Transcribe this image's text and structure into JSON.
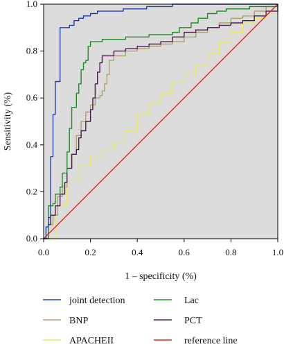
{
  "chart_data": {
    "type": "line",
    "title": "",
    "xlabel": "1 – specificity (%)",
    "ylabel": "Sensitivity (%)",
    "xlim": [
      0,
      1
    ],
    "ylim": [
      0,
      1
    ],
    "xticks": [
      "0.0",
      "0.2",
      "0.4",
      "0.6",
      "0.8",
      "1.0"
    ],
    "yticks": [
      "0.0",
      "0.2",
      "0.4",
      "0.6",
      "0.8",
      "1.0"
    ],
    "grid": false,
    "plot_background": "#dcdcdc",
    "legend_placement": "bottom",
    "series": [
      {
        "name": "joint detection",
        "color": "#1f3fb0",
        "x": [
          0,
          0.01,
          0.02,
          0.03,
          0.03,
          0.04,
          0.05,
          0.05,
          0.06,
          0.07,
          0.07,
          0.09,
          0.11,
          0.13,
          0.15,
          0.17,
          0.2,
          0.23,
          0.26,
          0.3,
          0.34,
          0.38,
          0.44,
          0.5,
          0.55,
          0.6,
          0.7,
          0.8,
          0.9,
          1.0
        ],
        "y": [
          0,
          0.05,
          0.09,
          0.1,
          0.35,
          0.53,
          0.55,
          0.67,
          0.67,
          0.82,
          0.9,
          0.9,
          0.91,
          0.93,
          0.94,
          0.95,
          0.96,
          0.97,
          0.97,
          0.97,
          0.98,
          0.98,
          0.99,
          0.99,
          1.0,
          1.0,
          1.0,
          1.0,
          1.0,
          1.0
        ]
      },
      {
        "name": "Lac",
        "color": "#1e8c2a",
        "x": [
          0,
          0.02,
          0.04,
          0.05,
          0.07,
          0.08,
          0.1,
          0.11,
          0.12,
          0.13,
          0.14,
          0.15,
          0.16,
          0.17,
          0.18,
          0.19,
          0.2,
          0.22,
          0.25,
          0.3,
          0.35,
          0.45,
          0.55,
          0.58,
          0.6,
          0.63,
          0.66,
          0.7,
          0.74,
          0.78,
          0.82,
          0.88,
          0.93,
          1.0
        ],
        "y": [
          0,
          0.14,
          0.15,
          0.19,
          0.22,
          0.28,
          0.37,
          0.47,
          0.56,
          0.56,
          0.62,
          0.66,
          0.72,
          0.75,
          0.76,
          0.82,
          0.84,
          0.84,
          0.85,
          0.85,
          0.86,
          0.87,
          0.88,
          0.9,
          0.9,
          0.92,
          0.94,
          0.96,
          0.97,
          0.98,
          0.98,
          0.99,
          0.99,
          1.0
        ]
      },
      {
        "name": "BNP",
        "color": "#b0a070",
        "x": [
          0,
          0.02,
          0.04,
          0.06,
          0.08,
          0.1,
          0.12,
          0.14,
          0.16,
          0.18,
          0.2,
          0.22,
          0.24,
          0.25,
          0.26,
          0.27,
          0.28,
          0.3,
          0.35,
          0.4,
          0.45,
          0.5,
          0.55,
          0.6,
          0.65,
          0.7,
          0.75,
          0.8,
          0.85,
          0.9,
          0.95,
          1.0
        ],
        "y": [
          0,
          0.06,
          0.1,
          0.18,
          0.22,
          0.3,
          0.36,
          0.44,
          0.5,
          0.54,
          0.57,
          0.6,
          0.61,
          0.63,
          0.66,
          0.7,
          0.76,
          0.78,
          0.8,
          0.81,
          0.82,
          0.83,
          0.84,
          0.86,
          0.88,
          0.9,
          0.92,
          0.94,
          0.95,
          0.97,
          0.99,
          1.0
        ]
      },
      {
        "name": "PCT",
        "color": "#4b1d4f",
        "x": [
          0,
          0.02,
          0.03,
          0.05,
          0.07,
          0.09,
          0.1,
          0.12,
          0.14,
          0.15,
          0.16,
          0.18,
          0.2,
          0.21,
          0.22,
          0.23,
          0.24,
          0.25,
          0.3,
          0.35,
          0.4,
          0.45,
          0.5,
          0.55,
          0.6,
          0.65,
          0.7,
          0.75,
          0.8,
          0.85,
          0.9,
          0.95,
          1.0
        ],
        "y": [
          0,
          0.06,
          0.1,
          0.14,
          0.19,
          0.24,
          0.3,
          0.36,
          0.38,
          0.43,
          0.46,
          0.5,
          0.55,
          0.6,
          0.66,
          0.71,
          0.75,
          0.78,
          0.8,
          0.81,
          0.82,
          0.83,
          0.84,
          0.86,
          0.88,
          0.89,
          0.9,
          0.91,
          0.92,
          0.93,
          0.95,
          0.97,
          1.0
        ]
      },
      {
        "name": "APACHEII",
        "color": "#ecea5e",
        "x": [
          0,
          0.05,
          0.1,
          0.15,
          0.2,
          0.25,
          0.3,
          0.35,
          0.4,
          0.45,
          0.5,
          0.55,
          0.6,
          0.65,
          0.7,
          0.75,
          0.8,
          0.85,
          0.9,
          0.95,
          1.0
        ],
        "y": [
          0,
          0.14,
          0.25,
          0.31,
          0.35,
          0.38,
          0.41,
          0.46,
          0.53,
          0.58,
          0.62,
          0.67,
          0.7,
          0.74,
          0.79,
          0.84,
          0.88,
          0.92,
          0.94,
          0.96,
          1.0
        ]
      },
      {
        "name": "reference line",
        "color": "#e0281e",
        "x": [
          0,
          1
        ],
        "y": [
          0,
          1
        ]
      }
    ]
  }
}
